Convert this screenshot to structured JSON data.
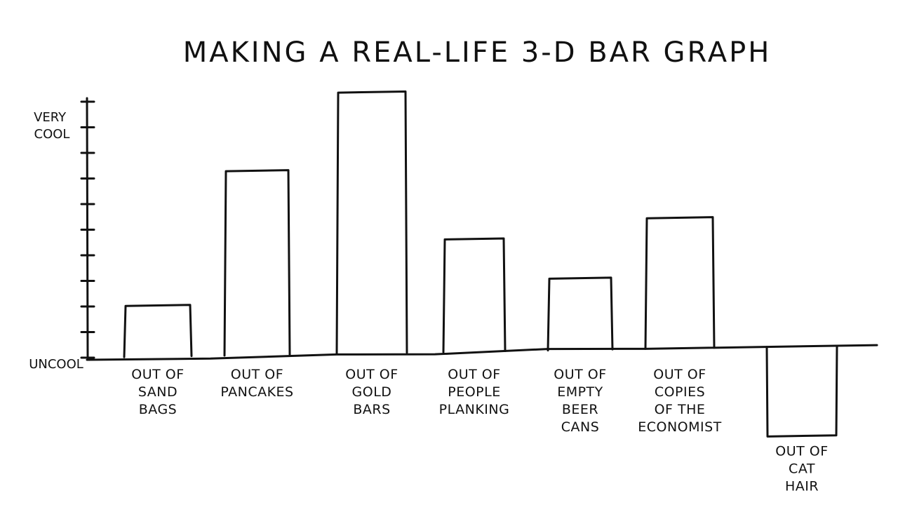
{
  "chart_data": {
    "type": "bar",
    "title": "MAKING A REAL-LIFE 3-D BAR GRAPH",
    "xlabel": "",
    "ylabel": "",
    "y_ticks": {
      "top": "VERY COOL",
      "bottom": "UNCOOL"
    },
    "ylim": [
      -3,
      10
    ],
    "grid": false,
    "legend": "none",
    "categories": [
      [
        "OUT OF",
        "SAND",
        "BAGS"
      ],
      [
        "OUT OF",
        "PANCAKES"
      ],
      [
        "OUT OF",
        "GOLD",
        "BARS"
      ],
      [
        "OUT OF",
        "PEOPLE",
        "PLANKING"
      ],
      [
        "OUT OF",
        "EMPTY",
        "BEER",
        "CANS"
      ],
      [
        "OUT OF",
        "COPIES",
        "OF THE",
        "ECONOMIST"
      ],
      [
        "OUT OF",
        "CAT",
        "HAIR"
      ]
    ],
    "values": [
      2,
      7.2,
      10.2,
      4.4,
      2.8,
      5.1,
      -3.5
    ]
  }
}
